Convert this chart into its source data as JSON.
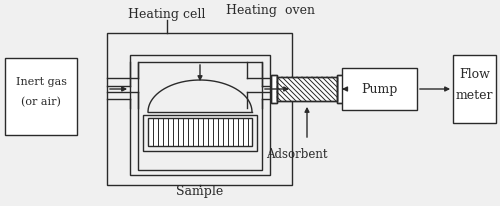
{
  "bg_color": "#f0f0f0",
  "line_color": "#2a2a2a",
  "labels": {
    "inert_gas_1": "Inert gas",
    "inert_gas_2": "(or air)",
    "heating_cell": "Heating cell",
    "heating_oven": "Heating  oven",
    "adsorbent": "Adsorbent",
    "sample": "Sample",
    "pump": "Pump",
    "flow_meter_1": "Flow",
    "flow_meter_2": "meter"
  },
  "figsize": [
    5.0,
    2.06
  ],
  "dpi": 100
}
